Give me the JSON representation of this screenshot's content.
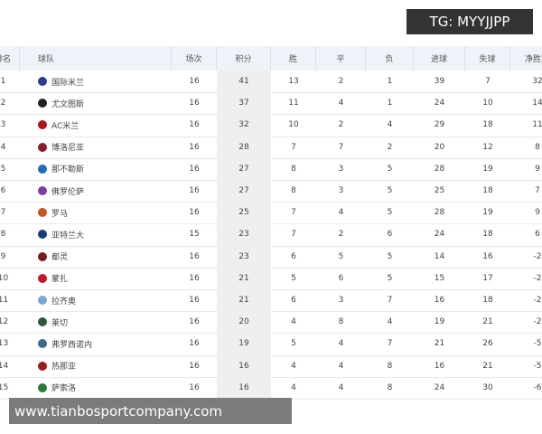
{
  "watermark_top": "TG: MYYJJPP",
  "watermark_bottom": "www.tianbosportcompany.com",
  "table": {
    "headers": [
      "排名",
      "球队",
      "场次",
      "积分",
      "胜",
      "平",
      "负",
      "进球",
      "失球",
      "净胜球"
    ],
    "rows": [
      [
        1,
        "国际米兰",
        16,
        41,
        13,
        2,
        1,
        39,
        7,
        32
      ],
      [
        2,
        "尤文图斯",
        16,
        37,
        11,
        4,
        1,
        24,
        10,
        14
      ],
      [
        3,
        "AC米兰",
        16,
        32,
        10,
        2,
        4,
        29,
        18,
        11
      ],
      [
        4,
        "博洛尼亚",
        16,
        28,
        7,
        7,
        2,
        20,
        12,
        8
      ],
      [
        5,
        "那不勒斯",
        16,
        27,
        8,
        3,
        5,
        28,
        19,
        9
      ],
      [
        6,
        "佛罗伦萨",
        16,
        27,
        8,
        3,
        5,
        25,
        18,
        7
      ],
      [
        7,
        "罗马",
        16,
        25,
        7,
        4,
        5,
        28,
        19,
        9
      ],
      [
        8,
        "亚特兰大",
        15,
        23,
        7,
        2,
        6,
        24,
        18,
        6
      ],
      [
        9,
        "都灵",
        16,
        23,
        6,
        5,
        5,
        14,
        16,
        -2
      ],
      [
        10,
        "蒙扎",
        16,
        21,
        5,
        6,
        5,
        15,
        17,
        -2
      ],
      [
        11,
        "拉齐奥",
        16,
        21,
        6,
        3,
        7,
        16,
        18,
        -2
      ],
      [
        12,
        "莱切",
        16,
        20,
        4,
        8,
        4,
        19,
        21,
        -2
      ],
      [
        13,
        "弗罗西诺内",
        16,
        19,
        5,
        4,
        7,
        21,
        26,
        -5
      ],
      [
        14,
        "热那亚",
        16,
        16,
        4,
        4,
        8,
        16,
        21,
        -5
      ],
      [
        15,
        "萨索洛",
        16,
        16,
        4,
        4,
        8,
        24,
        30,
        -6
      ]
    ]
  }
}
